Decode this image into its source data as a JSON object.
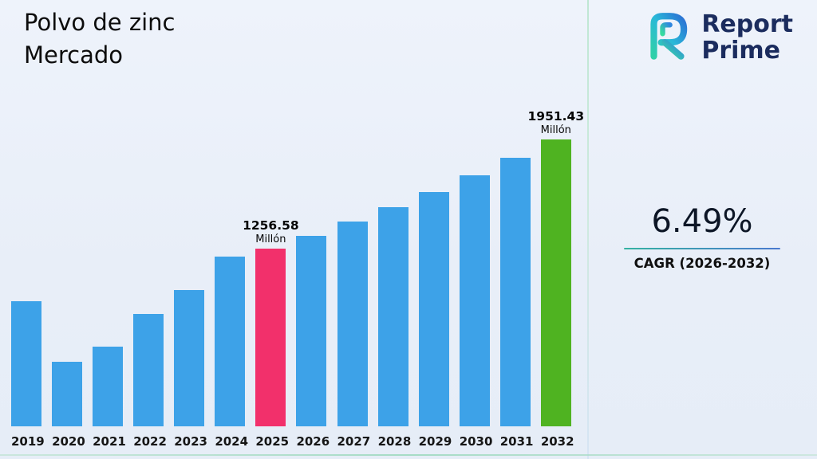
{
  "title": {
    "line1": "Polvo de zinc",
    "line2": "Mercado"
  },
  "logo": {
    "line1": "Report",
    "line2": "Prime"
  },
  "cagr": {
    "value": "6.49%",
    "label": "CAGR (2026-2032)"
  },
  "colors": {
    "background": "#e8eef8",
    "bar_blue": "#3da2e8",
    "bar_pink": "#f2306b",
    "bar_green": "#4fb321",
    "logo_navy": "#1b2c5e",
    "logo_teal": "#2fd0c0",
    "logo_blue": "#2b6fd4"
  },
  "chart_data": {
    "type": "bar",
    "title": "Polvo de zinc Mercado",
    "xlabel": "",
    "ylabel": "",
    "unit": "Millón",
    "legend": false,
    "grid": false,
    "ylim": [
      120,
      1951.43
    ],
    "categories": [
      "2019",
      "2020",
      "2021",
      "2022",
      "2023",
      "2024",
      "2025",
      "2026",
      "2027",
      "2028",
      "2029",
      "2030",
      "2031",
      "2032"
    ],
    "values": [
      920,
      530,
      630,
      835,
      990,
      1205,
      1256.58,
      1338.14,
      1425.03,
      1517.52,
      1616.01,
      1720.88,
      1832.57,
      1951.43
    ],
    "bar_colors": {
      "default": "#3da2e8",
      "2025": "#f2306b",
      "2032": "#4fb321"
    },
    "annotations": [
      {
        "category": "2025",
        "line1": "1256.58",
        "line2": "Millón"
      },
      {
        "category": "2032",
        "line1": "1951.43",
        "line2": "Millón"
      }
    ]
  }
}
